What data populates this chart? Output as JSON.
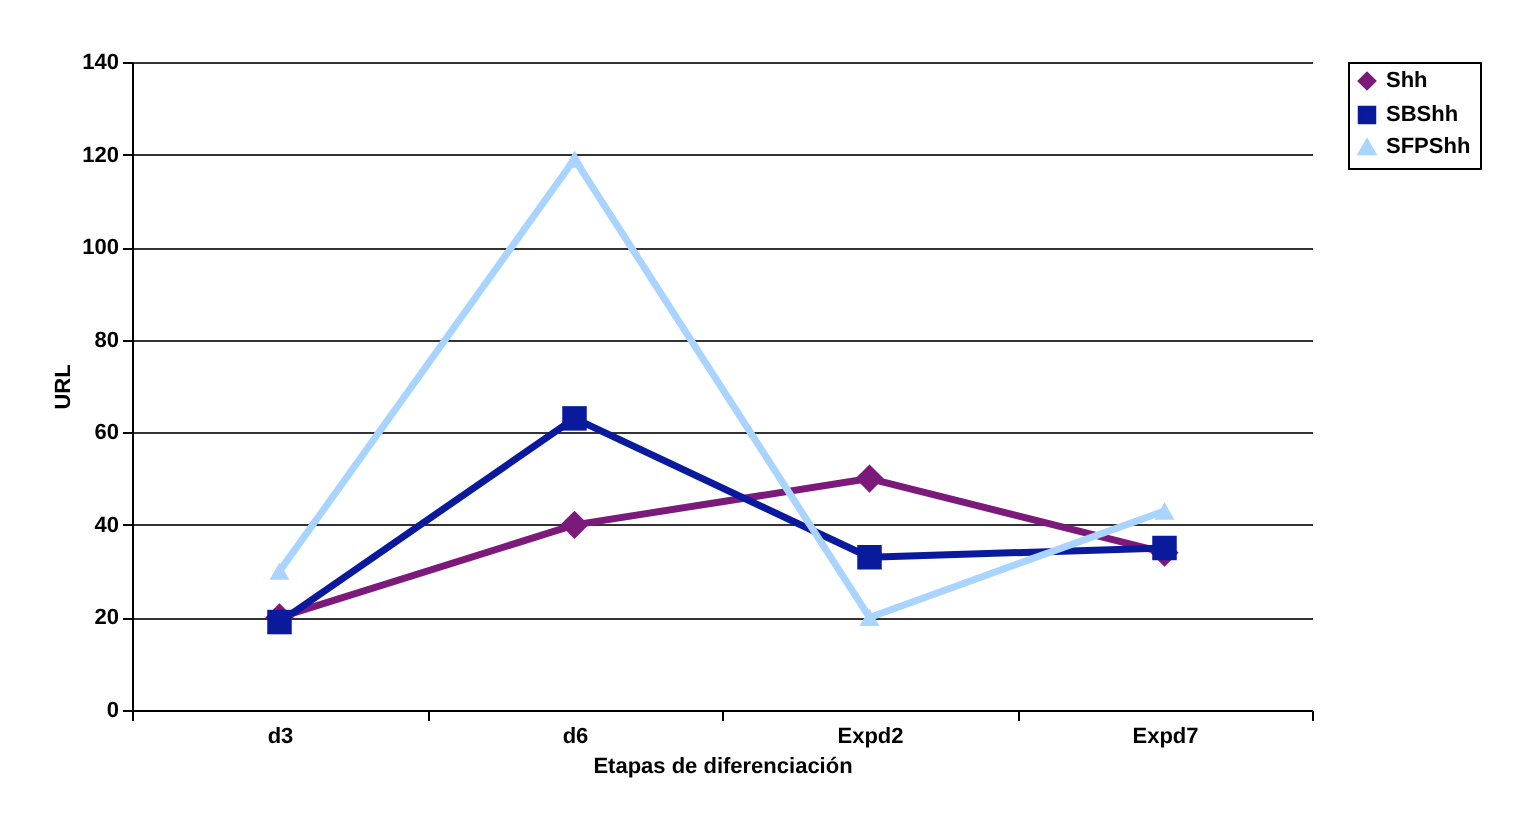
{
  "chart_data": {
    "type": "line",
    "xlabel": "Etapas de diferenciación",
    "ylabel": "URL",
    "categories": [
      "d3",
      "d6",
      "Expd2",
      "Expd7"
    ],
    "series": [
      {
        "name": "Shh",
        "color": "#7b1a7b",
        "marker": "diamond",
        "values": [
          20,
          40,
          50,
          34
        ]
      },
      {
        "name": "SBShh",
        "color": "#0a1a9c",
        "marker": "square",
        "values": [
          19,
          63,
          33,
          35
        ]
      },
      {
        "name": "SFPShh",
        "color": "#a8d4ff",
        "marker": "triangle",
        "values": [
          30,
          119,
          20,
          43
        ]
      }
    ],
    "ylim": [
      0,
      140
    ],
    "yticks": [
      0,
      20,
      40,
      60,
      80,
      100,
      120,
      140
    ],
    "grid": "y",
    "legend": "right",
    "line_style": "solid"
  }
}
